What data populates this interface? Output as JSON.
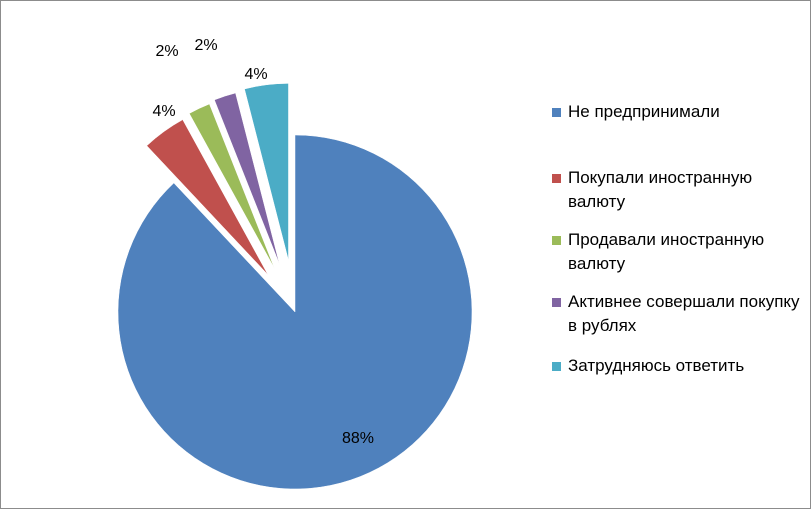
{
  "chart_data": {
    "type": "pie",
    "exploded": true,
    "legend_position": "right",
    "slices": [
      {
        "label": "Не предпринимали",
        "value": 88,
        "data_label": "88%",
        "color": "#4F81BD"
      },
      {
        "label": "Покупали иностранную валюту",
        "value": 4,
        "data_label": "4%",
        "color": "#C0504D"
      },
      {
        "label": "Продавали иностранную валюту",
        "value": 2,
        "data_label": "2%",
        "color": "#9BBB59"
      },
      {
        "label": "Активнее совершали покупку в рублях",
        "value": 2,
        "data_label": "2%",
        "color": "#8064A2"
      },
      {
        "label": "Затрудняюсь ответить",
        "value": 4,
        "data_label": "4%",
        "color": "#4BACC6"
      }
    ]
  }
}
